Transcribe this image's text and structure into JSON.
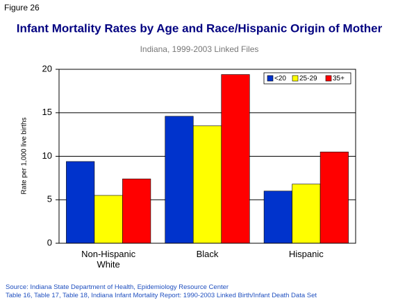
{
  "figure_label": "Figure 26",
  "chart_data": {
    "type": "bar",
    "title": "Infant Mortality Rates by Age and Race/Hispanic Origin of Mother",
    "subtitle": "Indiana, 1999-2003 Linked Files",
    "y_label": "Rate per 1,000 live births",
    "categories": [
      "Non-Hispanic White",
      "Black",
      "Hispanic"
    ],
    "series": [
      {
        "name": "<20",
        "color": "#0033cc",
        "values": [
          9.4,
          14.6,
          6.0
        ]
      },
      {
        "name": "25-29",
        "color": "#ffff00",
        "values": [
          5.5,
          13.5,
          6.8
        ]
      },
      {
        "name": "35+",
        "color": "#ff0000",
        "values": [
          7.4,
          19.4,
          10.5
        ]
      }
    ],
    "ylim": [
      0,
      20
    ],
    "yticks": [
      0,
      5,
      10,
      15,
      20
    ],
    "grid": true,
    "legend": "top-right"
  },
  "source": [
    "Source: Indiana State Department of Health, Epidemiology Resource Center",
    "Table 16, Table 17, Table 18, Indiana Infant Mortality Report: 1990-2003 Linked Birth/Infant Death Data Set"
  ]
}
